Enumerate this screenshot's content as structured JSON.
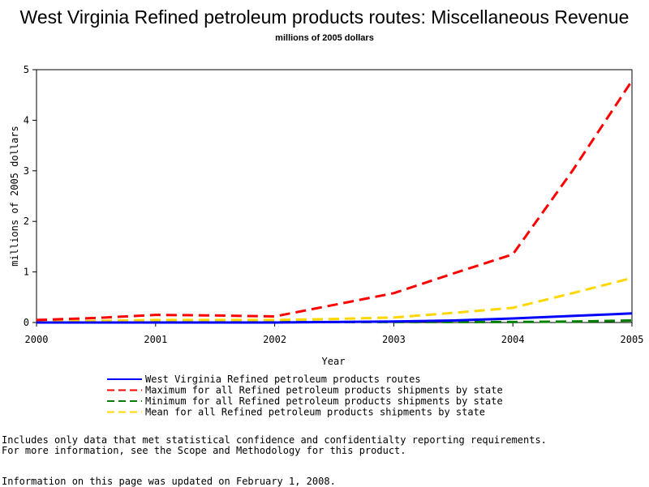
{
  "chart_data": {
    "type": "line",
    "title": "West Virginia Refined petroleum products routes: Miscellaneous Revenue",
    "subtitle": "millions of 2005 dollars",
    "xlabel": "Year",
    "ylabel": "millions of 2005 dollars",
    "x": [
      2000,
      2000.5,
      2001,
      2001.5,
      2002,
      2002.5,
      2003,
      2003.5,
      2004,
      2004.5,
      2005
    ],
    "x_ticks": [
      "2000",
      "2001",
      "2002",
      "2003",
      "2004",
      "2005"
    ],
    "y_ticks": [
      "0",
      "1",
      "2",
      "3",
      "4",
      "5"
    ],
    "xlim": [
      2000,
      2005
    ],
    "ylim": [
      0,
      5
    ],
    "grid": false,
    "legend_position": "bottom",
    "series": [
      {
        "name": "West Virginia Refined petroleum products routes",
        "color": "#0000ff",
        "dash": "solid",
        "values": [
          0.0,
          0.0,
          0.0,
          0.0,
          0.0,
          0.01,
          0.02,
          0.04,
          0.08,
          0.13,
          0.18
        ]
      },
      {
        "name": "Maximum for all Refined petroleum products shipments by state",
        "color": "#ff0000",
        "dash": "dashed",
        "values": [
          0.05,
          0.09,
          0.15,
          0.14,
          0.12,
          0.35,
          0.58,
          0.97,
          1.35,
          3.0,
          4.78
        ]
      },
      {
        "name": "Minimum for all Refined petroleum products shipments by state",
        "color": "#007f00",
        "dash": "dashed",
        "values": [
          0.01,
          0.01,
          0.01,
          0.01,
          0.01,
          0.01,
          0.01,
          0.01,
          0.01,
          0.02,
          0.04
        ]
      },
      {
        "name": "Mean for all Refined petroleum products shipments by state",
        "color": "#ffd700",
        "dash": "dashed",
        "values": [
          0.02,
          0.03,
          0.05,
          0.05,
          0.05,
          0.07,
          0.1,
          0.19,
          0.29,
          0.58,
          0.88
        ]
      }
    ]
  },
  "notes": {
    "line1": "Includes only data that met statistical confidence and confidentialty reporting requirements.",
    "line2": "For more information, see the Scope and Methodology for this product.",
    "updated": "Information on this page was updated on February 1, 2008."
  }
}
